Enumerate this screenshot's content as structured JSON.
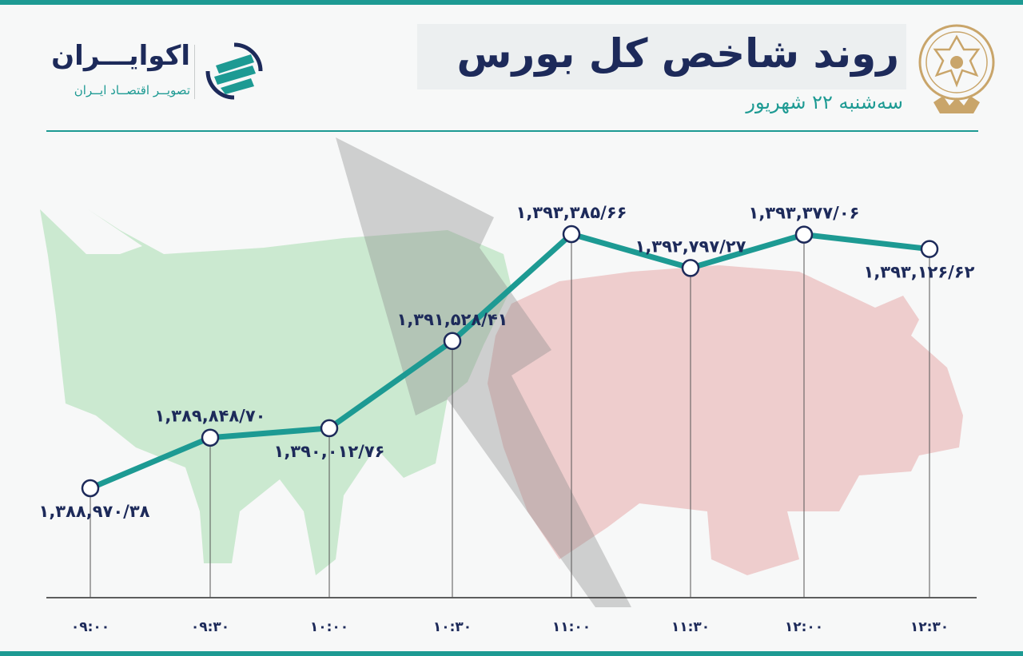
{
  "header": {
    "title": "روند شاخص کل بورس",
    "subtitle": "سه‌شنبه ۲۲ شهریور"
  },
  "brand": {
    "name": "اکوایـــران",
    "tagline": "تصویــر اقتصــاد ایــران"
  },
  "colors": {
    "accent": "#1d9a93",
    "text": "#1d2a5a",
    "bull": "#a8dcae",
    "bear": "#e7aaaa"
  },
  "chart_data": {
    "type": "line",
    "x": [
      "۰۹:۰۰",
      "۰۹:۳۰",
      "۱۰:۰۰",
      "۱۰:۳۰",
      "۱۱:۰۰",
      "۱۱:۳۰",
      "۱۲:۰۰",
      "۱۲:۳۰"
    ],
    "values": [
      1388970.38,
      1389848.7,
      1390012.76,
      1391528.41,
      1393385.66,
      1392797.27,
      1393377.06,
      1393126.62
    ],
    "value_labels": [
      "۱,۳۸۸,۹۷۰/۳۸",
      "۱,۳۸۹,۸۴۸/۷۰",
      "۱,۳۹۰,۰۱۲/۷۶",
      "۱,۳۹۱,۵۲۸/۴۱",
      "۱,۳۹۳,۳۸۵/۶۶",
      "۱,۳۹۲,۷۹۷/۲۷",
      "۱,۳۹۳,۳۷۷/۰۶",
      "۱,۳۹۳,۱۲۶/۶۲"
    ],
    "label_position": [
      "below",
      "above",
      "below",
      "above",
      "above",
      "above",
      "above",
      "below"
    ],
    "grid": false,
    "legend": "none"
  }
}
